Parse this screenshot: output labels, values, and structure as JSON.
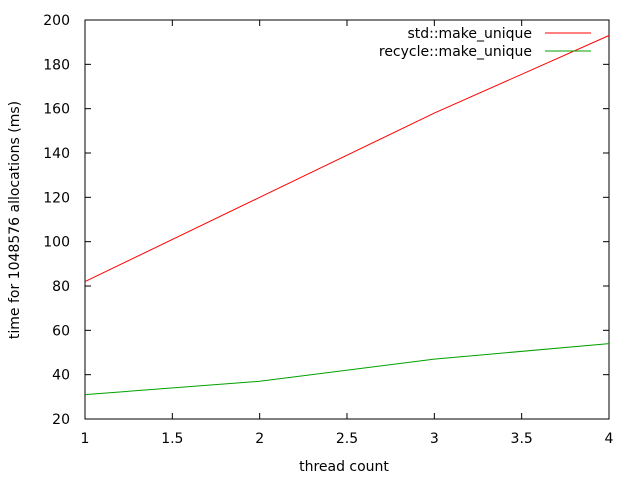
{
  "chart_data": {
    "type": "line",
    "title": "",
    "xlabel": "thread count",
    "ylabel": "time for 1048576 allocations (ms)",
    "xlim": [
      1,
      4
    ],
    "ylim": [
      20,
      200
    ],
    "x_ticks": [
      1,
      1.5,
      2,
      2.5,
      3,
      3.5,
      4
    ],
    "x_tick_labels": [
      "1",
      "1.5",
      "2",
      "2.5",
      "3",
      "3.5",
      "4"
    ],
    "y_ticks": [
      20,
      40,
      60,
      80,
      100,
      120,
      140,
      160,
      180,
      200
    ],
    "y_tick_labels": [
      "20",
      "40",
      "60",
      "80",
      "100",
      "120",
      "140",
      "160",
      "180",
      "200"
    ],
    "grid": false,
    "legend_position": "top-right",
    "series": [
      {
        "name": "std::make_unique",
        "color": "#ff0000",
        "x": [
          1,
          2,
          3,
          4
        ],
        "y": [
          82,
          120,
          158,
          193
        ]
      },
      {
        "name": "recycle::make_unique",
        "color": "#00a000",
        "x": [
          1,
          2,
          3,
          4
        ],
        "y": [
          31,
          37,
          47,
          54
        ]
      }
    ]
  }
}
